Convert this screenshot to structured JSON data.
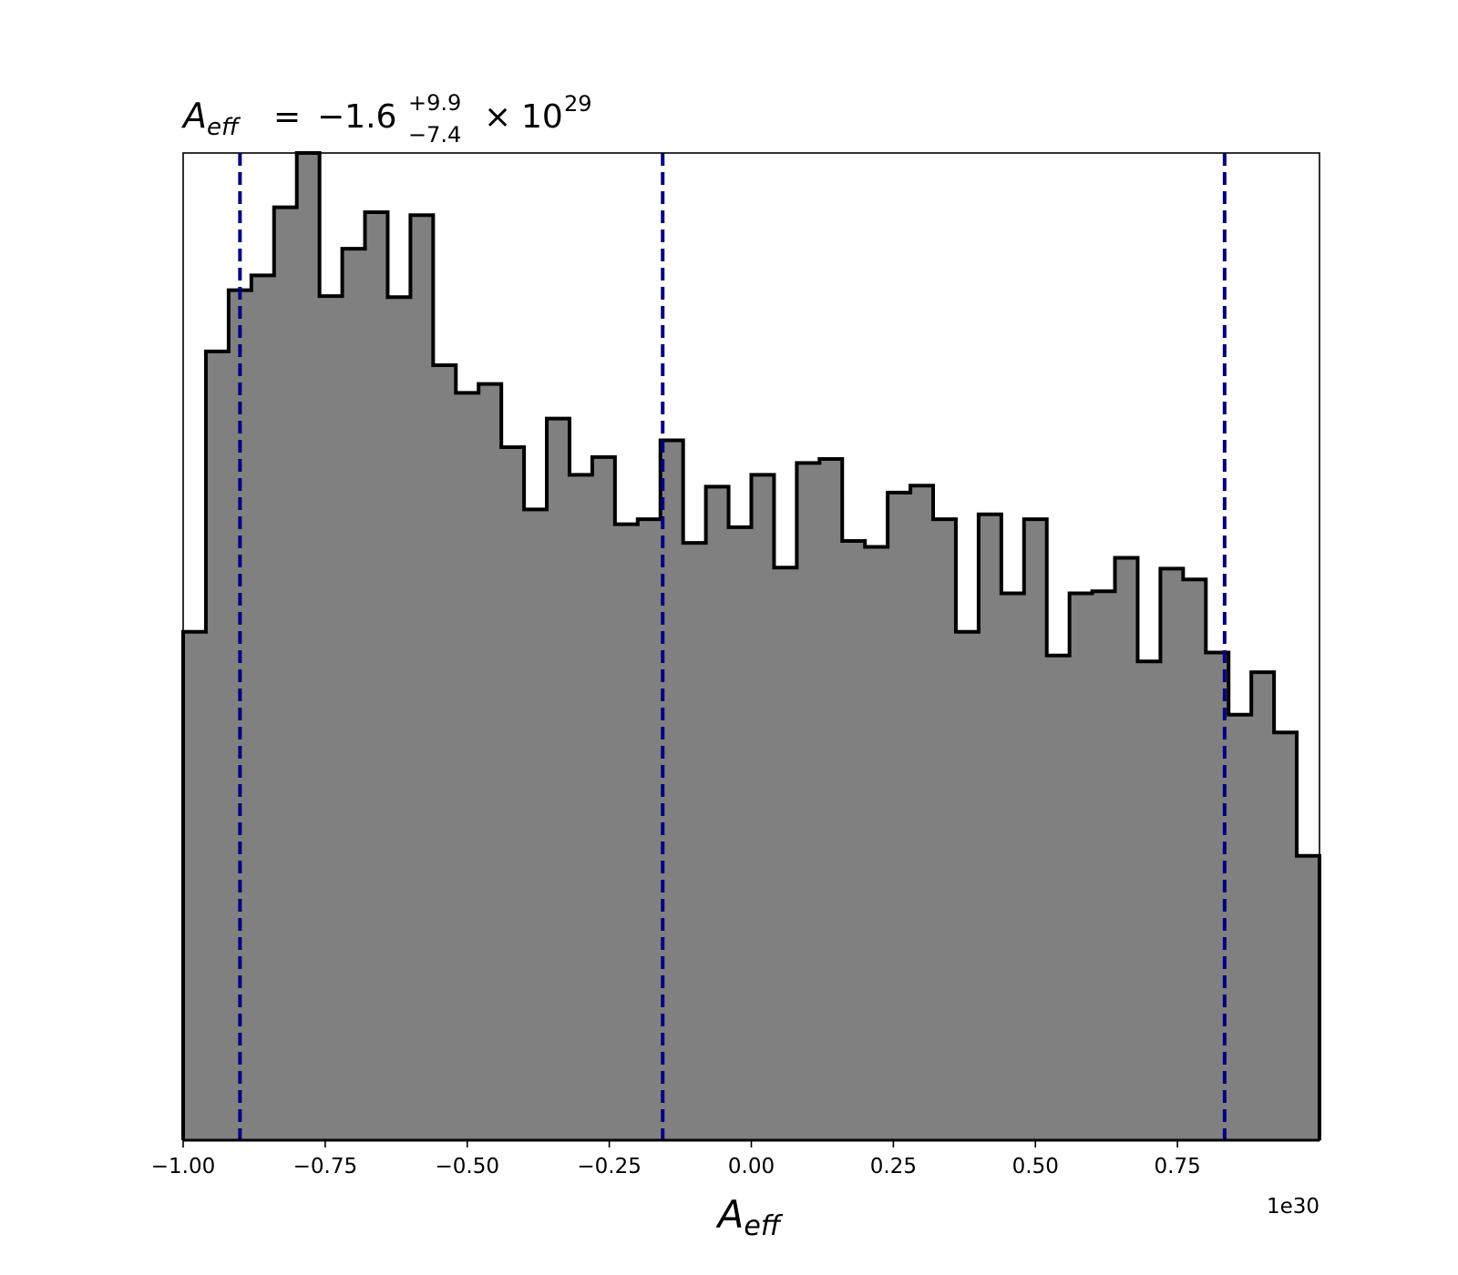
{
  "chart_data": {
    "type": "histogram",
    "title": {
      "symbol": "A",
      "symbol_sub": "eff",
      "equals": "=",
      "median": "−1.6",
      "plus": "+9.9",
      "minus": "−7.4",
      "times": "×",
      "base": "10",
      "exponent": "29"
    },
    "xlabel": {
      "symbol": "A",
      "sub": "eff"
    },
    "x_offset_label": "1e30",
    "xlim": [
      -1.0,
      1.0
    ],
    "ylim": [
      0,
      1.0
    ],
    "x_ticks": [
      -1.0,
      -0.75,
      -0.5,
      -0.25,
      0.0,
      0.25,
      0.5,
      0.75
    ],
    "x_tick_labels": [
      "−1.00",
      "−0.75",
      "−0.50",
      "−0.25",
      "0.00",
      "0.25",
      "0.50",
      "0.75"
    ],
    "bin_edges": [
      -1.0,
      -0.96,
      -0.92,
      -0.88,
      -0.84,
      -0.8,
      -0.76,
      -0.72,
      -0.68,
      -0.64,
      -0.6,
      -0.56,
      -0.52,
      -0.48,
      -0.44,
      -0.4,
      -0.36,
      -0.32,
      -0.28,
      -0.24,
      -0.2,
      -0.16,
      -0.12,
      -0.08,
      -0.04,
      0.0,
      0.04,
      0.08,
      0.12,
      0.16,
      0.2,
      0.24,
      0.28,
      0.32,
      0.36,
      0.4,
      0.44,
      0.48,
      0.52,
      0.56,
      0.6,
      0.64,
      0.68,
      0.72,
      0.76,
      0.8,
      0.84,
      0.88,
      0.92,
      0.96,
      1.0
    ],
    "counts": [
      0.515,
      0.799,
      0.861,
      0.876,
      0.945,
      1.0,
      0.855,
      0.903,
      0.94,
      0.854,
      0.937,
      0.785,
      0.757,
      0.766,
      0.702,
      0.639,
      0.731,
      0.674,
      0.692,
      0.624,
      0.629,
      0.709,
      0.605,
      0.662,
      0.621,
      0.674,
      0.58,
      0.686,
      0.69,
      0.607,
      0.601,
      0.656,
      0.663,
      0.629,
      0.515,
      0.634,
      0.554,
      0.629,
      0.491,
      0.554,
      0.556,
      0.59,
      0.485,
      0.579,
      0.568,
      0.494,
      0.431,
      0.474,
      0.413,
      0.288
    ],
    "quantile_lines": [
      -0.9,
      -0.156,
      0.833
    ],
    "colors": {
      "fill": "#808080",
      "edge": "#000000",
      "quantile": "#000080"
    }
  }
}
